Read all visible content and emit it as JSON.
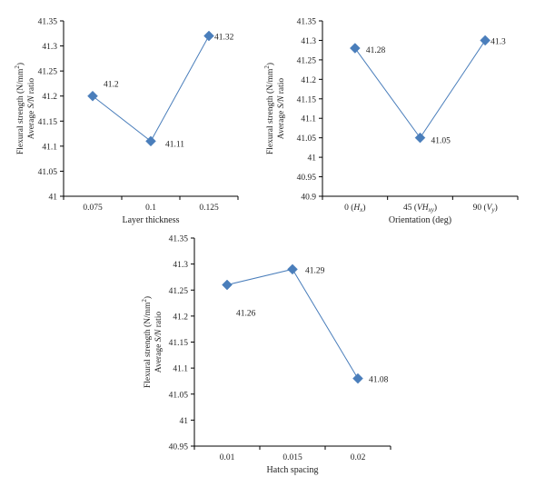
{
  "chart_data": [
    {
      "type": "line",
      "categories": [
        "0.075",
        "0.1",
        "0.125"
      ],
      "values": [
        41.2,
        41.11,
        41.32
      ],
      "data_labels": [
        "41.2",
        "41.11",
        "41.32"
      ],
      "xlabel": "Layer thickness",
      "ylabel_line1": "Flexural strength (N/mm²)",
      "ylabel_line2": "Average S/N ratio",
      "ylim": [
        41,
        41.35
      ],
      "yticks": [
        "41",
        "41.05",
        "41.1",
        "41.15",
        "41.2",
        "41.25",
        "41.3",
        "41.35"
      ],
      "grid": false,
      "legend": "none",
      "color": "#4a7ebb"
    },
    {
      "type": "line",
      "categories": [
        "0 (Hx)",
        "45 (VHxy)",
        "90 (Vy)"
      ],
      "values": [
        41.28,
        41.05,
        41.3
      ],
      "data_labels": [
        "41.28",
        "41.05",
        "41.3"
      ],
      "xlabel": "Orientation (deg)",
      "ylabel_line1": "Flexural strength (N/mm²)",
      "ylabel_line2": "Average S/N ratio",
      "ylim": [
        40.9,
        41.35
      ],
      "yticks": [
        "40.9",
        "40.95",
        "41",
        "41.05",
        "41.1",
        "41.15",
        "41.2",
        "41.25",
        "41.3",
        "41.35"
      ],
      "grid": false,
      "legend": "none",
      "color": "#4a7ebb"
    },
    {
      "type": "line",
      "categories": [
        "0.01",
        "0.015",
        "0.02"
      ],
      "values": [
        41.26,
        41.29,
        41.08
      ],
      "data_labels": [
        "41.26",
        "41.29",
        "41.08"
      ],
      "xlabel": "Hatch spacing",
      "ylabel_line1": "Flexural strength (N/mm²)",
      "ylabel_line2": "Average S/N ratio",
      "ylim": [
        40.95,
        41.35
      ],
      "yticks": [
        "40.95",
        "41",
        "41.05",
        "41.1",
        "41.15",
        "41.2",
        "41.25",
        "41.3",
        "41.35"
      ],
      "grid": false,
      "legend": "none",
      "color": "#4a7ebb"
    }
  ]
}
